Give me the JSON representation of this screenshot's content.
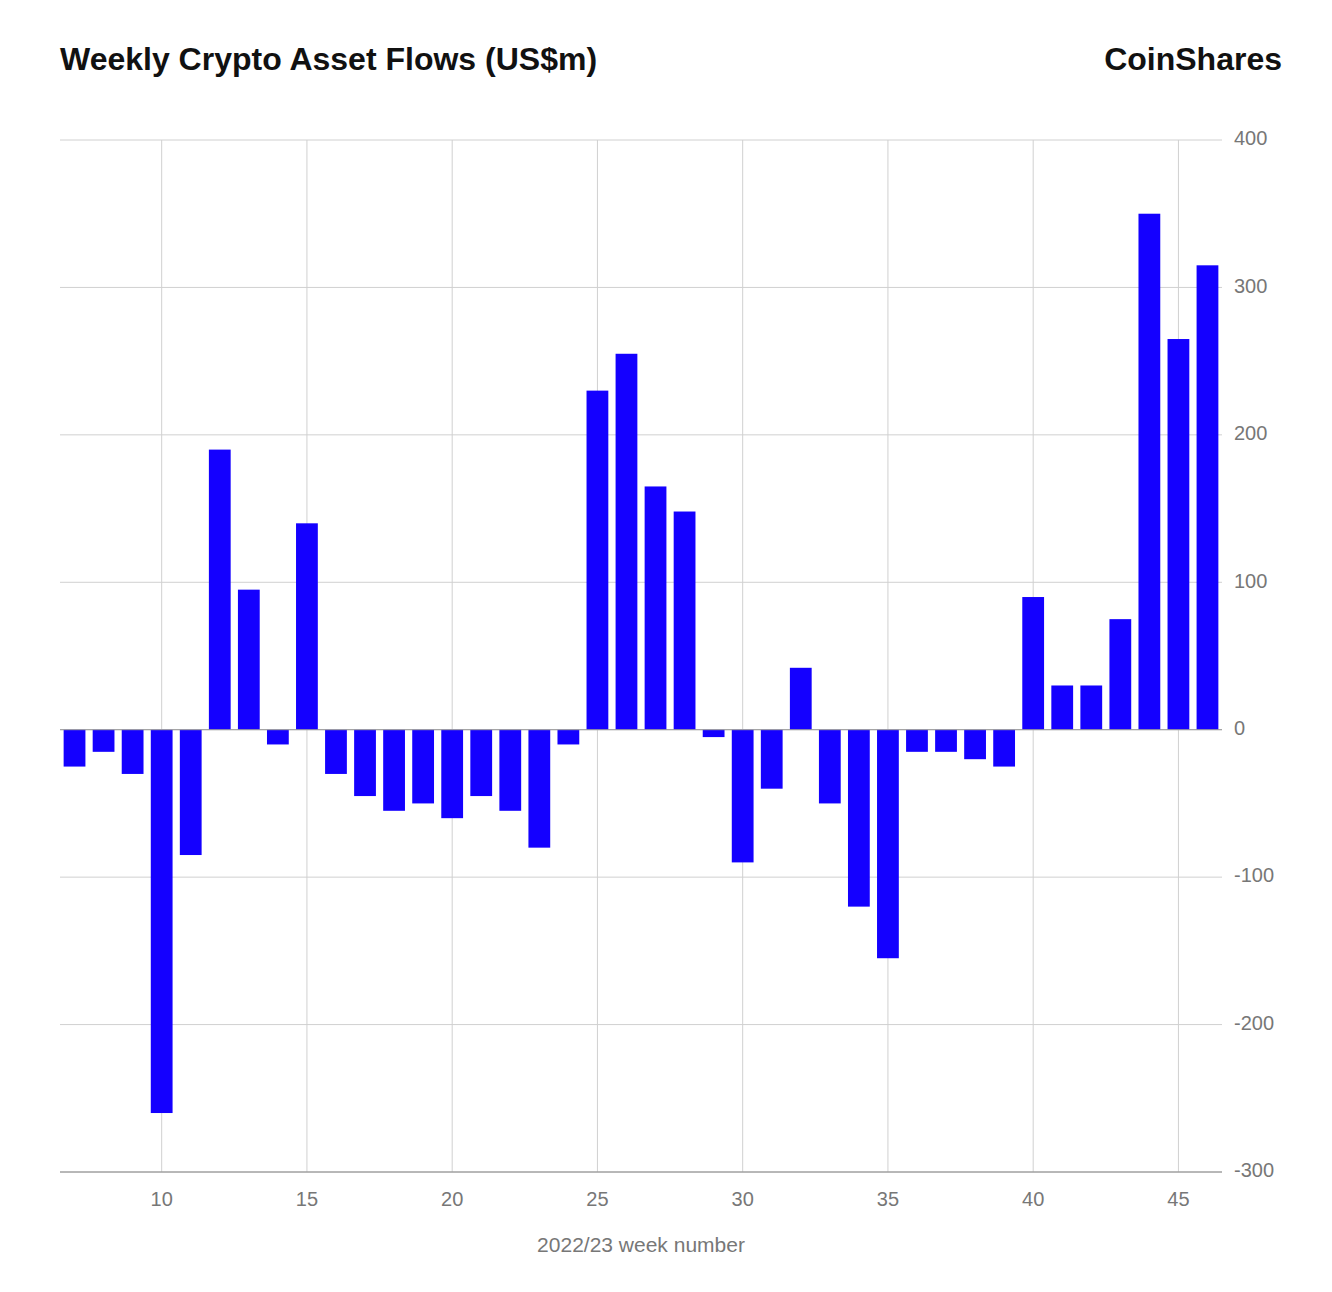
{
  "chart_data": {
    "type": "bar",
    "title": "Weekly Crypto Asset Flows (US$m)",
    "annotations": [
      "CoinShares"
    ],
    "xlabel": "2022/23 week number",
    "x": [
      7,
      8,
      9,
      10,
      11,
      12,
      13,
      14,
      15,
      16,
      17,
      18,
      19,
      20,
      21,
      22,
      23,
      24,
      25,
      26,
      27,
      28,
      29,
      30,
      31,
      32,
      33,
      34,
      35,
      36,
      37,
      38,
      39,
      40,
      41,
      42,
      43,
      44,
      45,
      46
    ],
    "values": [
      -25,
      -15,
      -30,
      -260,
      -85,
      190,
      95,
      -10,
      140,
      -30,
      -45,
      -55,
      -50,
      -60,
      -45,
      -55,
      -80,
      -10,
      230,
      255,
      165,
      148,
      -5,
      -90,
      -40,
      42,
      -50,
      -120,
      -155,
      -15,
      -15,
      -20,
      -25,
      90,
      30,
      30,
      75,
      350,
      265,
      315
    ],
    "color": "#1400ff",
    "xlim": [
      6.5,
      46.5
    ],
    "xticks": [
      10,
      15,
      20,
      25,
      30,
      35,
      40,
      45
    ],
    "ylim": [
      -300,
      400
    ],
    "yticks": [
      -300,
      -200,
      -100,
      0,
      100,
      200,
      300,
      400
    ],
    "grid": true
  }
}
